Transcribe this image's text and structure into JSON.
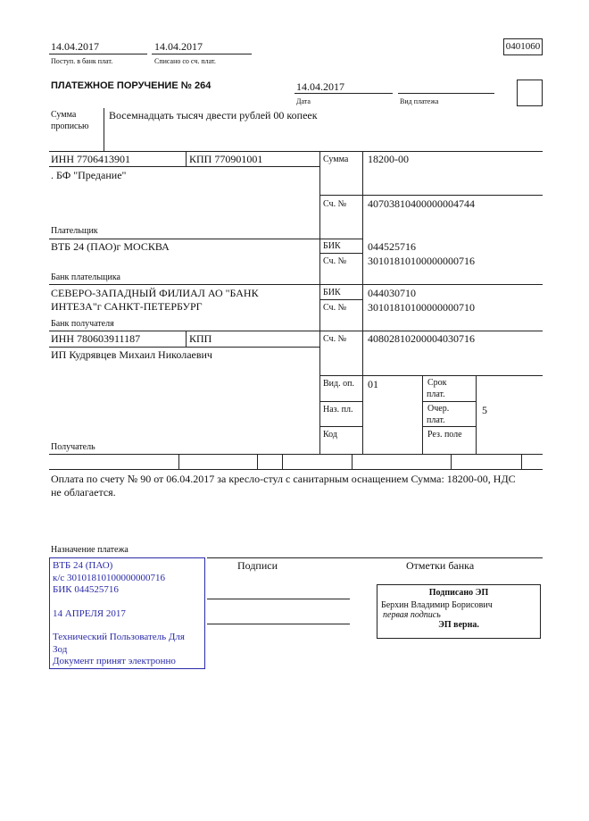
{
  "header": {
    "received_date": "14.04.2017",
    "received_label": "Поступ. в банк плат.",
    "debited_date": "14.04.2017",
    "debited_label": "Списано со сч. плат.",
    "form_code": "0401060"
  },
  "title": "ПЛАТЕЖНОЕ ПОРУЧЕНИЕ № 264",
  "date": {
    "value": "14.04.2017",
    "label": "Дата"
  },
  "payment_type": {
    "value": "",
    "label": "Вид платежа"
  },
  "amount_words": {
    "label": "Сумма прописью",
    "value": "Восемнадцать тысяч двести рублей 00 копеек"
  },
  "payer": {
    "inn": "ИНН 7706413901",
    "kpp": "КПП 770901001",
    "name": ". БФ \"Предание\"",
    "label": "Плательщик",
    "account_label": "Сч. №",
    "account": "40703810400000004744"
  },
  "amount": {
    "label": "Сумма",
    "value": "18200-00"
  },
  "payer_bank": {
    "name": "ВТБ 24 (ПАО)г МОСКВА",
    "label": "Банк плательщика",
    "bik_label": "БИК",
    "bik": "044525716",
    "account_label": "Сч. №",
    "account": "30101810100000000716"
  },
  "payee_bank": {
    "name_line1": "СЕВЕРО-ЗАПАДНЫЙ ФИЛИАЛ АО \"БАНК",
    "name_line2": "ИНТЕЗА\"г САНКТ-ПЕТЕРБУРГ",
    "label": "Банк получателя",
    "bik_label": "БИК",
    "bik": "044030710",
    "account_label": "Сч. №",
    "account": "30101810100000000710"
  },
  "payee": {
    "inn": "ИНН 780603911187",
    "kpp": "КПП",
    "name": "ИП Кудрявцев Михаил Николаевич",
    "label": "Получатель",
    "account_label": "Сч. №",
    "account": "40802810200004030716"
  },
  "codes": {
    "op_type_label": "Вид. оп.",
    "op_type": "01",
    "purpose_label": "Наз. пл.",
    "code_label": "Код",
    "term_label_1": "Срок",
    "term_label_2": "плат.",
    "priority_label_1": "Очер.",
    "priority_label_2": "плат.",
    "priority": "5",
    "reserved_label": "Рез. поле"
  },
  "purpose": {
    "line1": "Оплата по счету № 90 от 06.04.2017 за кресло-стул с санитарным оснащением Сумма: 18200-00, НДС",
    "line2": "не облагается.",
    "label": "Назначение платежа"
  },
  "signatures_label": "Подписи",
  "bank_marks_label": "Отметки банка",
  "bank_stamp": {
    "lines": [
      "ВТБ 24 (ПАО)",
      "к/с 30101810100000000716",
      "БИК 044525716",
      "",
      "14 АПРЕЛЯ 2017",
      "",
      "Технический Пользователь Для",
      "Зод",
      "Документ принят электронно"
    ],
    "color": "#2a2aa8"
  },
  "esign": {
    "title": "Подписано ЭП",
    "signer": "Берхин Владимир Борисович",
    "role": "первая подпись",
    "status": "ЭП верна."
  }
}
